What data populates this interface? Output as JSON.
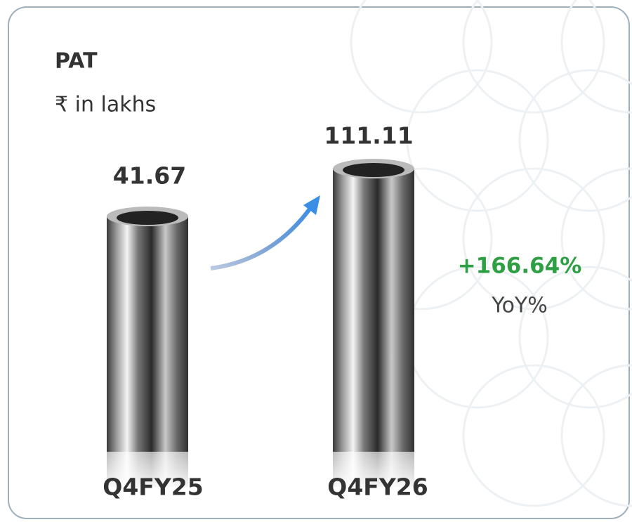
{
  "header": {
    "title": "PAT",
    "unit": "₹ in lakhs"
  },
  "items": [
    {
      "label": "Q4FY25",
      "value": 41.67
    },
    {
      "label": "Q4FY26",
      "value": 111.11
    }
  ],
  "change": {
    "value": "+166.64%",
    "label": "YoY%"
  }
}
